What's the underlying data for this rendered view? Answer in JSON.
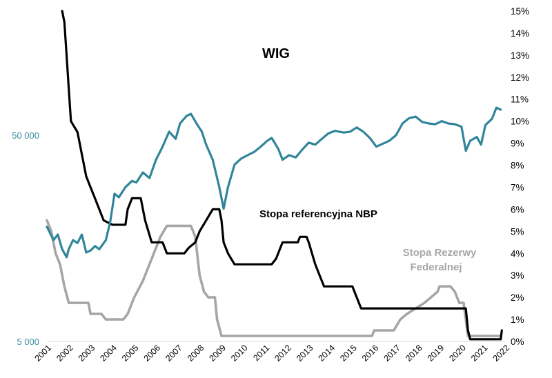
{
  "chart_data": {
    "type": "line",
    "title": "",
    "x_ticks": [
      "2001",
      "2002",
      "2003",
      "2004",
      "2005",
      "2006",
      "2007",
      "2008",
      "2009",
      "2010",
      "2011",
      "2012",
      "2013",
      "2014",
      "2015",
      "2016",
      "2017",
      "2018",
      "2019",
      "2020",
      "2021",
      "2022"
    ],
    "left_axis": {
      "scale": "log",
      "range": [
        5000,
        200000
      ],
      "ticks": [
        {
          "value": 50000,
          "label": "50 000"
        },
        {
          "value": 5000,
          "label": "5 000"
        }
      ]
    },
    "right_axis": {
      "range": [
        0,
        15
      ],
      "ticks": [
        "0%",
        "1%",
        "2%",
        "3%",
        "4%",
        "5%",
        "6%",
        "7%",
        "8%",
        "9%",
        "10%",
        "11%",
        "12%",
        "13%",
        "14%",
        "15%"
      ]
    },
    "colors": {
      "wig": "#31859b",
      "nbp": "#000000",
      "fed": "#a6a6a6"
    },
    "series": [
      {
        "name": "WIG",
        "label": "WIG",
        "axis": "left",
        "points": [
          [
            2001.0,
            18000
          ],
          [
            2001.3,
            15500
          ],
          [
            2001.5,
            16500
          ],
          [
            2001.7,
            14000
          ],
          [
            2001.9,
            12800
          ],
          [
            2002.0,
            14000
          ],
          [
            2002.2,
            15500
          ],
          [
            2002.4,
            15000
          ],
          [
            2002.6,
            16500
          ],
          [
            2002.8,
            13500
          ],
          [
            2003.0,
            13800
          ],
          [
            2003.2,
            14500
          ],
          [
            2003.4,
            14000
          ],
          [
            2003.7,
            15500
          ],
          [
            2003.9,
            19000
          ],
          [
            2004.1,
            26000
          ],
          [
            2004.3,
            25000
          ],
          [
            2004.6,
            28000
          ],
          [
            2004.9,
            30000
          ],
          [
            2005.1,
            29500
          ],
          [
            2005.4,
            33000
          ],
          [
            2005.7,
            31000
          ],
          [
            2006.0,
            38000
          ],
          [
            2006.3,
            44000
          ],
          [
            2006.6,
            52000
          ],
          [
            2006.9,
            48000
          ],
          [
            2007.1,
            57000
          ],
          [
            2007.4,
            62000
          ],
          [
            2007.6,
            63500
          ],
          [
            2007.9,
            56000
          ],
          [
            2008.1,
            52000
          ],
          [
            2008.3,
            45000
          ],
          [
            2008.6,
            38000
          ],
          [
            2008.9,
            28000
          ],
          [
            2009.1,
            22000
          ],
          [
            2009.3,
            28000
          ],
          [
            2009.6,
            36000
          ],
          [
            2009.9,
            38500
          ],
          [
            2010.2,
            40000
          ],
          [
            2010.5,
            41500
          ],
          [
            2010.8,
            44000
          ],
          [
            2011.1,
            47000
          ],
          [
            2011.3,
            48500
          ],
          [
            2011.6,
            43000
          ],
          [
            2011.8,
            38000
          ],
          [
            2012.1,
            40000
          ],
          [
            2012.4,
            39000
          ],
          [
            2012.7,
            42500
          ],
          [
            2013.0,
            46000
          ],
          [
            2013.3,
            45000
          ],
          [
            2013.6,
            48000
          ],
          [
            2013.9,
            51000
          ],
          [
            2014.2,
            52500
          ],
          [
            2014.6,
            51500
          ],
          [
            2014.9,
            52000
          ],
          [
            2015.2,
            54500
          ],
          [
            2015.5,
            52000
          ],
          [
            2015.8,
            48500
          ],
          [
            2016.1,
            44000
          ],
          [
            2016.4,
            45500
          ],
          [
            2016.7,
            47000
          ],
          [
            2017.0,
            50000
          ],
          [
            2017.3,
            57000
          ],
          [
            2017.6,
            60500
          ],
          [
            2017.9,
            61500
          ],
          [
            2018.2,
            58000
          ],
          [
            2018.5,
            57000
          ],
          [
            2018.8,
            56500
          ],
          [
            2019.1,
            58500
          ],
          [
            2019.4,
            57000
          ],
          [
            2019.7,
            56500
          ],
          [
            2020.0,
            55000
          ],
          [
            2020.2,
            42000
          ],
          [
            2020.4,
            47000
          ],
          [
            2020.7,
            49000
          ],
          [
            2020.9,
            45000
          ],
          [
            2021.1,
            56000
          ],
          [
            2021.4,
            60000
          ],
          [
            2021.6,
            68000
          ],
          [
            2021.8,
            66500
          ]
        ]
      },
      {
        "name": "Stopa referencyjna NBP",
        "label": "Stopa referencyjna NBP",
        "axis": "right",
        "points": [
          [
            2001.7,
            15.0
          ],
          [
            2001.8,
            14.5
          ],
          [
            2001.9,
            13.0
          ],
          [
            2002.0,
            11.5
          ],
          [
            2002.1,
            10.0
          ],
          [
            2002.4,
            9.5
          ],
          [
            2002.6,
            8.5
          ],
          [
            2002.8,
            7.5
          ],
          [
            2003.0,
            7.0
          ],
          [
            2003.2,
            6.5
          ],
          [
            2003.4,
            6.0
          ],
          [
            2003.6,
            5.5
          ],
          [
            2004.0,
            5.3
          ],
          [
            2004.4,
            5.3
          ],
          [
            2004.6,
            5.3
          ],
          [
            2004.7,
            6.0
          ],
          [
            2004.9,
            6.5
          ],
          [
            2005.3,
            6.5
          ],
          [
            2005.5,
            5.5
          ],
          [
            2005.8,
            4.5
          ],
          [
            2006.3,
            4.5
          ],
          [
            2006.5,
            4.0
          ],
          [
            2007.3,
            4.0
          ],
          [
            2007.5,
            4.25
          ],
          [
            2007.8,
            4.5
          ],
          [
            2008.0,
            5.0
          ],
          [
            2008.3,
            5.5
          ],
          [
            2008.6,
            6.0
          ],
          [
            2008.9,
            6.0
          ],
          [
            2009.0,
            5.5
          ],
          [
            2009.1,
            4.5
          ],
          [
            2009.3,
            4.0
          ],
          [
            2009.6,
            3.5
          ],
          [
            2011.3,
            3.5
          ],
          [
            2011.5,
            3.75
          ],
          [
            2011.8,
            4.5
          ],
          [
            2012.5,
            4.5
          ],
          [
            2012.6,
            4.75
          ],
          [
            2012.9,
            4.75
          ],
          [
            2013.0,
            4.5
          ],
          [
            2013.3,
            3.5
          ],
          [
            2013.5,
            3.0
          ],
          [
            2013.7,
            2.5
          ],
          [
            2015.0,
            2.5
          ],
          [
            2015.2,
            2.0
          ],
          [
            2015.4,
            1.5
          ],
          [
            2020.2,
            1.5
          ],
          [
            2020.3,
            0.5
          ],
          [
            2020.4,
            0.1
          ],
          [
            2021.8,
            0.1
          ],
          [
            2021.85,
            0.5
          ]
        ]
      },
      {
        "name": "Stopa Rezerwy Federalnej",
        "label_line1": "Stopa Rezerwy",
        "label_line2": "Federalnej",
        "axis": "right",
        "points": [
          [
            2001.0,
            5.5
          ],
          [
            2001.2,
            5.0
          ],
          [
            2001.4,
            4.0
          ],
          [
            2001.6,
            3.5
          ],
          [
            2001.8,
            2.5
          ],
          [
            2002.0,
            1.75
          ],
          [
            2002.9,
            1.75
          ],
          [
            2003.0,
            1.25
          ],
          [
            2003.5,
            1.25
          ],
          [
            2003.7,
            1.0
          ],
          [
            2004.5,
            1.0
          ],
          [
            2004.7,
            1.25
          ],
          [
            2005.0,
            2.0
          ],
          [
            2005.4,
            2.75
          ],
          [
            2005.8,
            3.75
          ],
          [
            2006.2,
            4.75
          ],
          [
            2006.5,
            5.25
          ],
          [
            2007.6,
            5.25
          ],
          [
            2007.8,
            4.75
          ],
          [
            2008.0,
            3.0
          ],
          [
            2008.2,
            2.25
          ],
          [
            2008.4,
            2.0
          ],
          [
            2008.7,
            2.0
          ],
          [
            2008.8,
            1.0
          ],
          [
            2009.0,
            0.25
          ],
          [
            2015.9,
            0.25
          ],
          [
            2016.0,
            0.5
          ],
          [
            2016.9,
            0.5
          ],
          [
            2017.2,
            1.0
          ],
          [
            2017.5,
            1.25
          ],
          [
            2017.9,
            1.5
          ],
          [
            2018.3,
            1.75
          ],
          [
            2018.6,
            2.0
          ],
          [
            2018.9,
            2.25
          ],
          [
            2019.0,
            2.5
          ],
          [
            2019.5,
            2.5
          ],
          [
            2019.7,
            2.25
          ],
          [
            2019.9,
            1.75
          ],
          [
            2020.1,
            1.75
          ],
          [
            2020.2,
            1.0
          ],
          [
            2020.3,
            0.25
          ],
          [
            2021.8,
            0.25
          ]
        ]
      }
    ]
  }
}
